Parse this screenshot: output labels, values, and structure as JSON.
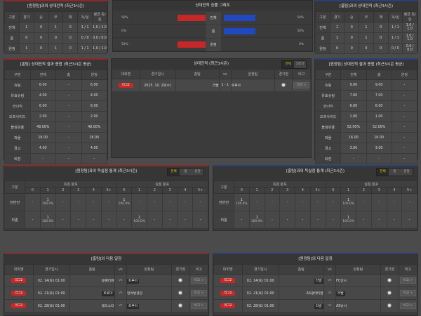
{
  "colors": {
    "home": "#c62828",
    "away": "#2148c0",
    "active_tab": "#f0d000"
  },
  "h2h_left": {
    "title": "[원정팀]과의 상대전적 (최근3시즌)",
    "headers": [
      "구분",
      "경기",
      "승",
      "무",
      "패",
      "득/실",
      "평균 득/실"
    ],
    "rows": [
      [
        "전체",
        "1",
        "0",
        "1",
        "0",
        "1 / 1",
        "1.0 / 1.0"
      ],
      [
        "홈",
        "0",
        "0",
        "0",
        "0",
        "0 / 0",
        "0.0 / 0.0"
      ],
      [
        "원정",
        "1",
        "0",
        "1",
        "0",
        "1 / 1",
        "1.0 / 1.0"
      ]
    ]
  },
  "h2h_right": {
    "title": "[홈팀]과의 상대전적 (최근3시즌)",
    "headers": [
      "구분",
      "경기",
      "승",
      "무",
      "패",
      "득/실",
      "평균 득/실"
    ],
    "rows": [
      [
        "전체",
        "1",
        "0",
        "1",
        "0",
        "1 / 1",
        "1.0 / 1.0"
      ],
      [
        "홈",
        "1",
        "0",
        "1",
        "0",
        "1 / 1",
        "1.0 / 1.0"
      ],
      [
        "원정",
        "0",
        "0",
        "0",
        "0",
        "0 / 0",
        "0.0 / 0.0"
      ]
    ]
  },
  "graph": {
    "title": "상대전적 승률 그래프",
    "rows": [
      {
        "label": "전체",
        "left_pct": "50%",
        "right_pct": "50%",
        "left": 50,
        "right": 50
      },
      {
        "label": "홈",
        "left_pct": "0%",
        "right_pct": "50%",
        "left": 0,
        "right": 50
      },
      {
        "label": "원정",
        "left_pct": "50%",
        "right_pct": "0%",
        "left": 50,
        "right": 0
      }
    ]
  },
  "stats_left": {
    "title": "[홈팀] 상대전적 결과 종합 (최근3시즌 평균)",
    "headers": [
      "구분",
      "전체",
      "홈",
      "원정"
    ],
    "rows": [
      [
        "슈팅",
        "6.00",
        "-",
        "6.00"
      ],
      [
        "유효슈팅",
        "4.00",
        "-",
        "4.00"
      ],
      [
        "코너킥",
        "6.00",
        "-",
        "6.00"
      ],
      [
        "오프사이드",
        "2.00",
        "-",
        "2.00"
      ],
      [
        "볼점유율",
        "48.00%",
        "-",
        "48.00%"
      ],
      [
        "파울",
        "18.00",
        "-",
        "18.00"
      ],
      [
        "경고",
        "4.00",
        "-",
        "4.00"
      ],
      [
        "퇴장",
        "-",
        "-",
        "-"
      ]
    ]
  },
  "stats_right": {
    "title": "[원정팀] 상대전적 결과 종합 (최근3시즌 평균)",
    "headers": [
      "구분",
      "전체",
      "홈",
      "원정"
    ],
    "rows": [
      [
        "슈팅",
        "9.00",
        "9.00",
        "-"
      ],
      [
        "유효슈팅",
        "7.00",
        "7.00",
        "-"
      ],
      [
        "코너킥",
        "6.00",
        "6.00",
        "-"
      ],
      [
        "오프사이드",
        "1.00",
        "1.00",
        "-"
      ],
      [
        "볼점유율",
        "52.00%",
        "52.00%",
        "-"
      ],
      [
        "파울",
        "16.00",
        "16.00",
        "-"
      ],
      [
        "경고",
        "3.00",
        "3.00",
        "-"
      ],
      [
        "퇴장",
        "-",
        "-",
        "-"
      ]
    ]
  },
  "h2h_matches": {
    "title": "상대전적 (최근3시즌)",
    "tabs": [
      "전체",
      "5경기"
    ],
    "headers": [
      "대회명",
      "경기일시",
      "홈팀",
      "vs",
      "원정팀",
      "경기장",
      "비고"
    ],
    "rows": [
      {
        "league": "리그2",
        "date": "2025. 10. 29(수)",
        "home": "라발",
        "score": "1 - 1",
        "away": "트루아",
        "note": "결과 >"
      }
    ]
  },
  "goals_left": {
    "title": "[원정팀]과의 득실점 통계 (최근3시즌)",
    "tabs": [
      "전체",
      "홈",
      "원정"
    ],
    "label_col": "구분",
    "groups": [
      "득점 분포",
      "실점 분포"
    ],
    "buckets": [
      "0",
      "1",
      "2",
      "3",
      "4",
      "5+"
    ],
    "rows": [
      {
        "label": "전반전",
        "cells": [
          "-",
          {
            "n": "1",
            "pct": "100.0%"
          },
          "-",
          "-",
          "-",
          "-",
          {
            "n": "1",
            "pct": "100.0%"
          },
          "-",
          "-",
          "-",
          "-",
          "-"
        ]
      },
      {
        "label": "최종",
        "cells": [
          "-",
          {
            "n": "1",
            "pct": "100.0%"
          },
          "-",
          "-",
          "-",
          "-",
          "-",
          {
            "n": "1",
            "pct": "100.0%"
          },
          "-",
          "-",
          "-",
          "-"
        ]
      }
    ]
  },
  "goals_right": {
    "title": "[홈팀]과의 득실점 통계 (최근3시즌)",
    "tabs": [
      "전체",
      "홈",
      "원정"
    ],
    "label_col": "구분",
    "groups": [
      "득점 분포",
      "실점 분포"
    ],
    "buckets": [
      "0",
      "1",
      "2",
      "3",
      "4",
      "5+"
    ],
    "rows": [
      {
        "label": "전반전",
        "cells": [
          {
            "n": "1",
            "pct": "100.0%"
          },
          "-",
          "-",
          "-",
          "-",
          "-",
          "-",
          {
            "n": "1",
            "pct": "100.0%"
          },
          "-",
          "-",
          "-",
          "-"
        ]
      },
      {
        "label": "최종",
        "cells": [
          "-",
          {
            "n": "1",
            "pct": "100.0%"
          },
          "-",
          "-",
          "-",
          "-",
          "-",
          {
            "n": "1",
            "pct": "100.0%"
          },
          "-",
          "-",
          "-",
          "-"
        ]
      }
    ]
  },
  "next_left": {
    "title": "[홈팀]의 다음 일정",
    "headers": [
      "대회명",
      "경기일시",
      "홈팀",
      "vs",
      "원정팀",
      "경기장",
      "비고"
    ],
    "rows": [
      {
        "league": "리그2",
        "date": "02. 14(토) 01:00",
        "home": "몽펠리에",
        "away": "트루아",
        "hl": "away",
        "note": "비교 >"
      },
      {
        "league": "리그2",
        "date": "02. 21(토) 01:00",
        "home": "트루아",
        "away": "앙아방갱강",
        "hl": "home",
        "note": "비교 >"
      },
      {
        "league": "리그2",
        "date": "02. 28(토) 01:00",
        "home": "레드스타",
        "away": "트루아",
        "hl": "away",
        "note": "비교 >"
      }
    ]
  },
  "next_right": {
    "title": "[원정팀]의 다음 일정",
    "headers": [
      "대회명",
      "경기일시",
      "홈팀",
      "vs",
      "원정팀",
      "경기장",
      "비고"
    ],
    "rows": [
      {
        "league": "리그2",
        "date": "02. 14(토) 01:00",
        "home": "라발",
        "away": "FC안시",
        "hl": "home",
        "note": "비교 >"
      },
      {
        "league": "리그2",
        "date": "02. 21(토) 01:00",
        "home": "AS생테티엔",
        "away": "라발",
        "hl": "away",
        "note": "비교 >"
      },
      {
        "league": "리그2",
        "date": "02. 28(토) 01:00",
        "home": "라발",
        "away": "AS낭시",
        "hl": "home",
        "note": "비교 >"
      }
    ]
  }
}
